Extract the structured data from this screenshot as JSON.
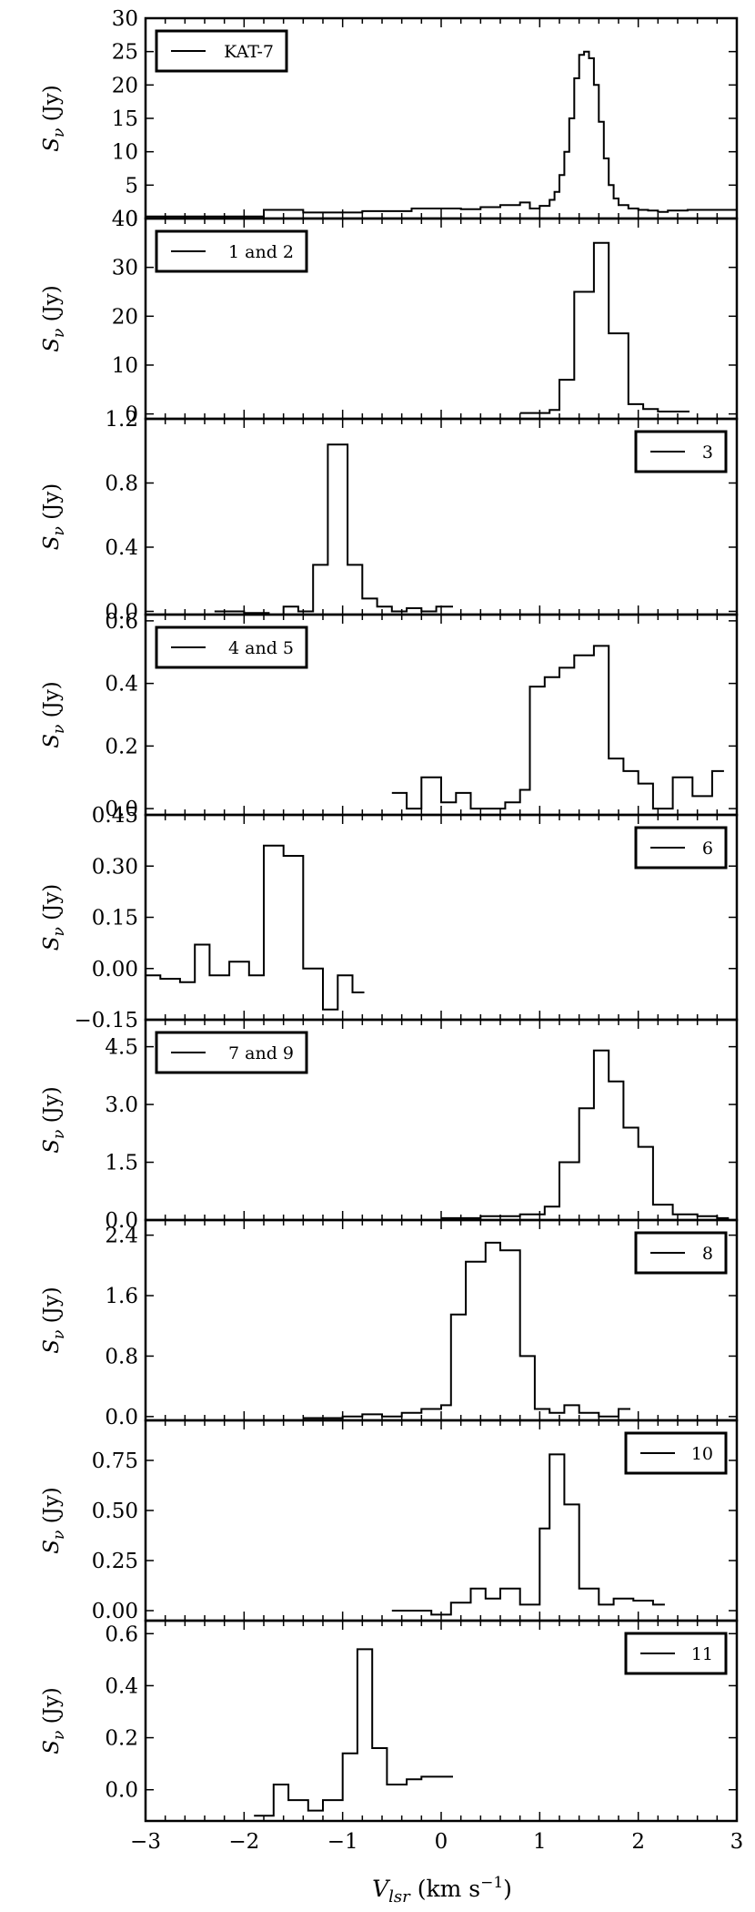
{
  "chart_data": {
    "type": "line",
    "style": "stepped spectra, stacked panels with shared x axis",
    "xlabel": "V_lsr (km s^-1)",
    "xlim": [
      -3,
      3
    ],
    "x_ticks": [
      -3,
      -2,
      -1,
      0,
      1,
      2,
      3
    ],
    "x_tick_labels": [
      "−3",
      "−2",
      "−1",
      "0",
      "1",
      "2",
      "3"
    ],
    "panels": [
      {
        "legend": "KAT-7",
        "legend_position": "top-left",
        "ylabel": "S_v (Jy)",
        "ylim": [
          0,
          30
        ],
        "y_ticks": [
          0,
          5,
          10,
          15,
          20,
          25,
          30
        ],
        "y_tick_labels": [
          "0",
          "5",
          "10",
          "15",
          "20",
          "25",
          "30"
        ],
        "series": [
          {
            "x": [
              -3.0,
              -1.8,
              -1.4,
              -0.8,
              -0.3,
              0.2,
              0.4,
              0.6,
              0.8,
              0.9,
              1.0,
              1.1,
              1.15,
              1.2,
              1.25,
              1.3,
              1.35,
              1.4,
              1.45,
              1.5,
              1.55,
              1.6,
              1.65,
              1.7,
              1.75,
              1.8,
              1.9,
              2.0,
              2.1,
              2.2,
              2.3,
              2.5,
              3.0
            ],
            "y": [
              0.3,
              1.3,
              0.9,
              1.1,
              1.5,
              1.4,
              1.7,
              2.0,
              2.4,
              1.5,
              1.9,
              2.8,
              4.0,
              6.5,
              10.0,
              15.0,
              21.0,
              24.5,
              25.0,
              24.0,
              20.0,
              14.5,
              9.0,
              5.0,
              3.0,
              2.0,
              1.5,
              1.3,
              1.2,
              1.0,
              1.2,
              1.3,
              1.3
            ]
          }
        ]
      },
      {
        "legend": "1 and 2",
        "legend_position": "top-left",
        "ylabel": "S_v (Jy)",
        "ylim": [
          -1,
          40
        ],
        "y_ticks": [
          0,
          10,
          20,
          30,
          40
        ],
        "y_tick_labels": [
          "0",
          "10",
          "20",
          "30",
          "40"
        ],
        "series": [
          {
            "x": [
              0.8,
              1.1,
              1.2,
              1.35,
              1.55,
              1.7,
              1.9,
              2.05,
              2.2,
              2.4
            ],
            "y": [
              0.2,
              0.8,
              7.0,
              25.0,
              35.0,
              16.5,
              2.0,
              1.0,
              0.5,
              0.5
            ]
          }
        ]
      },
      {
        "legend": "3",
        "legend_position": "top-right",
        "ylabel": "S_v (Jy)",
        "ylim": [
          -0.02,
          1.2
        ],
        "y_ticks": [
          0.0,
          0.4,
          0.8,
          1.2
        ],
        "y_tick_labels": [
          "0.0",
          "0.4",
          "0.8",
          "1.2"
        ],
        "series": [
          {
            "x": [
              -2.3,
              -2.0,
              -1.75,
              -1.6,
              -1.45,
              -1.3,
              -1.15,
              -0.95,
              -0.8,
              -0.65,
              -0.5,
              -0.35,
              -0.2,
              -0.05,
              0.0
            ],
            "y": [
              0.0,
              -0.01,
              -0.02,
              0.03,
              0.0,
              0.29,
              1.04,
              0.29,
              0.08,
              0.03,
              0.0,
              0.02,
              0.0,
              0.03,
              0.03
            ]
          }
        ]
      },
      {
        "legend": "4 and 5",
        "legend_position": "top-left",
        "ylabel": "S_v (Jy)",
        "ylim": [
          -0.02,
          0.62
        ],
        "y_ticks": [
          0.0,
          0.2,
          0.4,
          0.6
        ],
        "y_tick_labels": [
          "0.0",
          "0.2",
          "0.4",
          "0.6"
        ],
        "series": [
          {
            "x": [
              -0.5,
              -0.35,
              -0.2,
              0.0,
              0.15,
              0.3,
              0.5,
              0.65,
              0.8,
              0.9,
              1.05,
              1.2,
              1.35,
              1.55,
              1.7,
              1.85,
              2.0,
              2.15,
              2.35,
              2.55,
              2.75
            ],
            "y": [
              0.05,
              0.0,
              0.1,
              0.02,
              0.05,
              0.0,
              0.0,
              0.02,
              0.06,
              0.39,
              0.42,
              0.45,
              0.49,
              0.52,
              0.16,
              0.12,
              0.08,
              0.0,
              0.1,
              0.04,
              0.12
            ]
          }
        ]
      },
      {
        "legend": "6",
        "legend_position": "top-right",
        "ylabel": "S_v (Jy)",
        "ylim": [
          -0.15,
          0.45
        ],
        "y_ticks": [
          -0.15,
          0.0,
          0.15,
          0.3,
          0.45
        ],
        "y_tick_labels": [
          "−0.15",
          "0.00",
          "0.15",
          "0.30",
          "0.45"
        ],
        "series": [
          {
            "x": [
              -3.0,
              -2.85,
              -2.65,
              -2.5,
              -2.35,
              -2.15,
              -1.95,
              -1.8,
              -1.6,
              -1.4,
              -1.2,
              -1.05,
              -0.9
            ],
            "y": [
              -0.02,
              -0.03,
              -0.04,
              0.07,
              -0.02,
              0.02,
              -0.02,
              0.36,
              0.33,
              0.0,
              -0.12,
              -0.02,
              -0.07
            ]
          }
        ]
      },
      {
        "legend": "7 and 9",
        "legend_position": "top-left",
        "ylabel": "S_v (Jy)",
        "ylim": [
          0,
          5.2
        ],
        "y_ticks": [
          0.0,
          1.5,
          3.0,
          4.5
        ],
        "y_tick_labels": [
          "0.0",
          "1.5",
          "3.0",
          "4.5"
        ],
        "series": [
          {
            "x": [
              0.0,
              0.4,
              0.8,
              1.05,
              1.2,
              1.4,
              1.55,
              1.7,
              1.85,
              2.0,
              2.15,
              2.35,
              2.6,
              2.8
            ],
            "y": [
              0.05,
              0.1,
              0.15,
              0.35,
              1.5,
              2.9,
              4.4,
              3.6,
              2.4,
              1.9,
              0.4,
              0.15,
              0.1,
              0.05
            ]
          }
        ]
      },
      {
        "legend": "8",
        "legend_position": "top-right",
        "ylabel": "S_v (Jy)",
        "ylim": [
          -0.05,
          2.6
        ],
        "y_ticks": [
          0.0,
          0.8,
          1.6,
          2.4
        ],
        "y_tick_labels": [
          "0.0",
          "0.8",
          "1.6",
          "2.4"
        ],
        "series": [
          {
            "x": [
              -1.4,
              -1.0,
              -0.8,
              -0.6,
              -0.4,
              -0.2,
              0.0,
              0.1,
              0.25,
              0.45,
              0.6,
              0.8,
              0.95,
              1.1,
              1.25,
              1.4,
              1.6,
              1.8
            ],
            "y": [
              -0.02,
              0.0,
              0.03,
              0.0,
              0.05,
              0.1,
              0.15,
              1.35,
              2.05,
              2.3,
              2.2,
              0.8,
              0.1,
              0.05,
              0.15,
              0.05,
              0.0,
              0.1
            ]
          }
        ]
      },
      {
        "legend": "10",
        "legend_position": "top-right",
        "ylabel": "S_v (Jy)",
        "ylim": [
          -0.05,
          0.95
        ],
        "y_ticks": [
          0.0,
          0.25,
          0.5,
          0.75
        ],
        "y_tick_labels": [
          "0.00",
          "0.25",
          "0.50",
          "0.75"
        ],
        "series": [
          {
            "x": [
              -0.5,
              -0.1,
              0.1,
              0.3,
              0.45,
              0.6,
              0.8,
              1.0,
              1.1,
              1.25,
              1.4,
              1.6,
              1.75,
              1.95,
              2.15
            ],
            "y": [
              0.0,
              -0.02,
              0.04,
              0.11,
              0.06,
              0.11,
              0.03,
              0.41,
              0.78,
              0.53,
              0.11,
              0.03,
              0.06,
              0.05,
              0.03
            ]
          }
        ]
      },
      {
        "legend": "11",
        "legend_position": "top-right",
        "ylabel": "S_v (Jy)",
        "ylim": [
          -0.12,
          0.65
        ],
        "y_ticks": [
          0.0,
          0.2,
          0.4,
          0.6
        ],
        "y_tick_labels": [
          "0.0",
          "0.2",
          "0.4",
          "0.6"
        ],
        "series": [
          {
            "x": [
              -1.9,
              -1.7,
              -1.55,
              -1.35,
              -1.2,
              -1.0,
              -0.85,
              -0.7,
              -0.55,
              -0.35,
              -0.2,
              0.0
            ],
            "y": [
              -0.1,
              0.02,
              -0.04,
              -0.08,
              -0.04,
              0.14,
              0.54,
              0.16,
              0.02,
              0.04,
              0.05,
              0.05
            ]
          }
        ]
      }
    ]
  }
}
